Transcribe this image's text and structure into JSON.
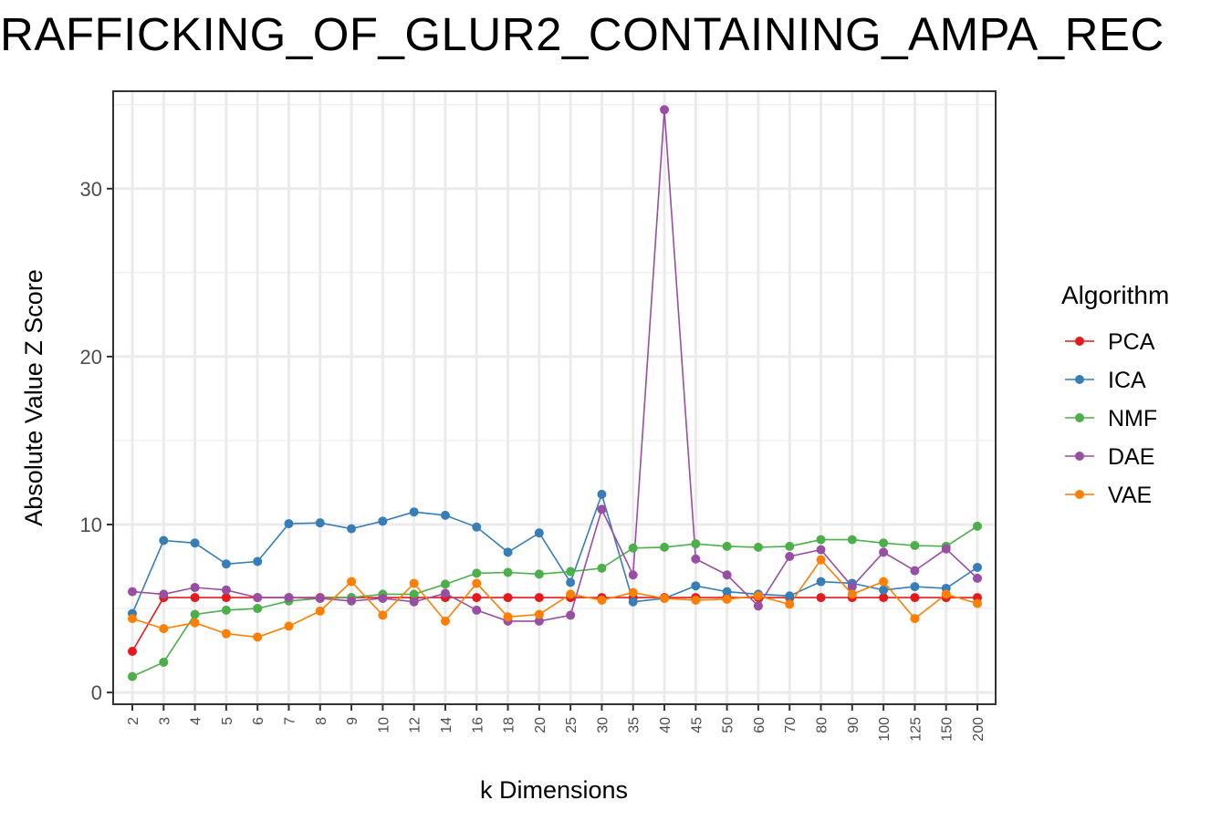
{
  "chart_data": {
    "type": "line",
    "title": "RAFFICKING_OF_GLUR2_CONTAINING_AMPA_REC",
    "xlabel": "k Dimensions",
    "ylabel": "Absolute Value Z Score",
    "categories": [
      "2",
      "3",
      "4",
      "5",
      "6",
      "7",
      "8",
      "9",
      "10",
      "12",
      "14",
      "16",
      "18",
      "20",
      "25",
      "30",
      "35",
      "40",
      "45",
      "50",
      "60",
      "70",
      "80",
      "90",
      "100",
      "125",
      "150",
      "200"
    ],
    "ylim": [
      -0.7,
      35.8
    ],
    "yticks": [
      "0",
      "10",
      "20",
      "30"
    ],
    "grid": true,
    "legend_title": "Algorithm",
    "legend_position": "right",
    "series": [
      {
        "name": "PCA",
        "color": "#e41a1c",
        "values": [
          2.45,
          5.65,
          5.65,
          5.65,
          5.65,
          5.65,
          5.65,
          5.65,
          5.65,
          5.65,
          5.65,
          5.65,
          5.65,
          5.65,
          5.65,
          5.65,
          5.65,
          5.65,
          5.65,
          5.65,
          5.65,
          5.65,
          5.65,
          5.65,
          5.65,
          5.65,
          5.65,
          5.65
        ]
      },
      {
        "name": "ICA",
        "color": "#377eb8",
        "values": [
          4.7,
          9.05,
          8.9,
          7.65,
          7.8,
          10.05,
          10.1,
          9.75,
          10.2,
          10.75,
          10.55,
          9.85,
          8.35,
          9.5,
          6.55,
          11.8,
          5.4,
          5.6,
          6.35,
          6.0,
          5.85,
          5.75,
          6.6,
          6.5,
          6.1,
          6.3,
          6.2,
          7.45
        ]
      },
      {
        "name": "NMF",
        "color": "#4daf4a",
        "values": [
          0.95,
          1.8,
          4.65,
          4.9,
          5.0,
          5.45,
          5.6,
          5.65,
          5.85,
          5.85,
          6.45,
          7.1,
          7.15,
          7.05,
          7.2,
          7.4,
          8.6,
          8.65,
          8.85,
          8.7,
          8.65,
          8.7,
          9.1,
          9.1,
          8.9,
          8.75,
          8.7,
          9.9
        ]
      },
      {
        "name": "DAE",
        "color": "#984ea3",
        "values": [
          6.0,
          5.85,
          6.25,
          6.1,
          5.65,
          5.65,
          5.6,
          5.45,
          5.6,
          5.4,
          5.9,
          4.9,
          4.25,
          4.25,
          4.6,
          10.9,
          7.0,
          34.7,
          7.95,
          7.0,
          5.15,
          8.1,
          8.5,
          6.3,
          8.35,
          7.25,
          8.55,
          6.8
        ]
      },
      {
        "name": "VAE",
        "color": "#ff7f00",
        "values": [
          4.4,
          3.8,
          4.15,
          3.5,
          3.3,
          3.95,
          4.85,
          6.6,
          4.6,
          6.5,
          4.25,
          6.5,
          4.5,
          4.65,
          5.85,
          5.5,
          5.95,
          5.6,
          5.5,
          5.55,
          5.75,
          5.25,
          7.9,
          5.85,
          6.6,
          4.4,
          5.85,
          5.3
        ]
      }
    ]
  }
}
